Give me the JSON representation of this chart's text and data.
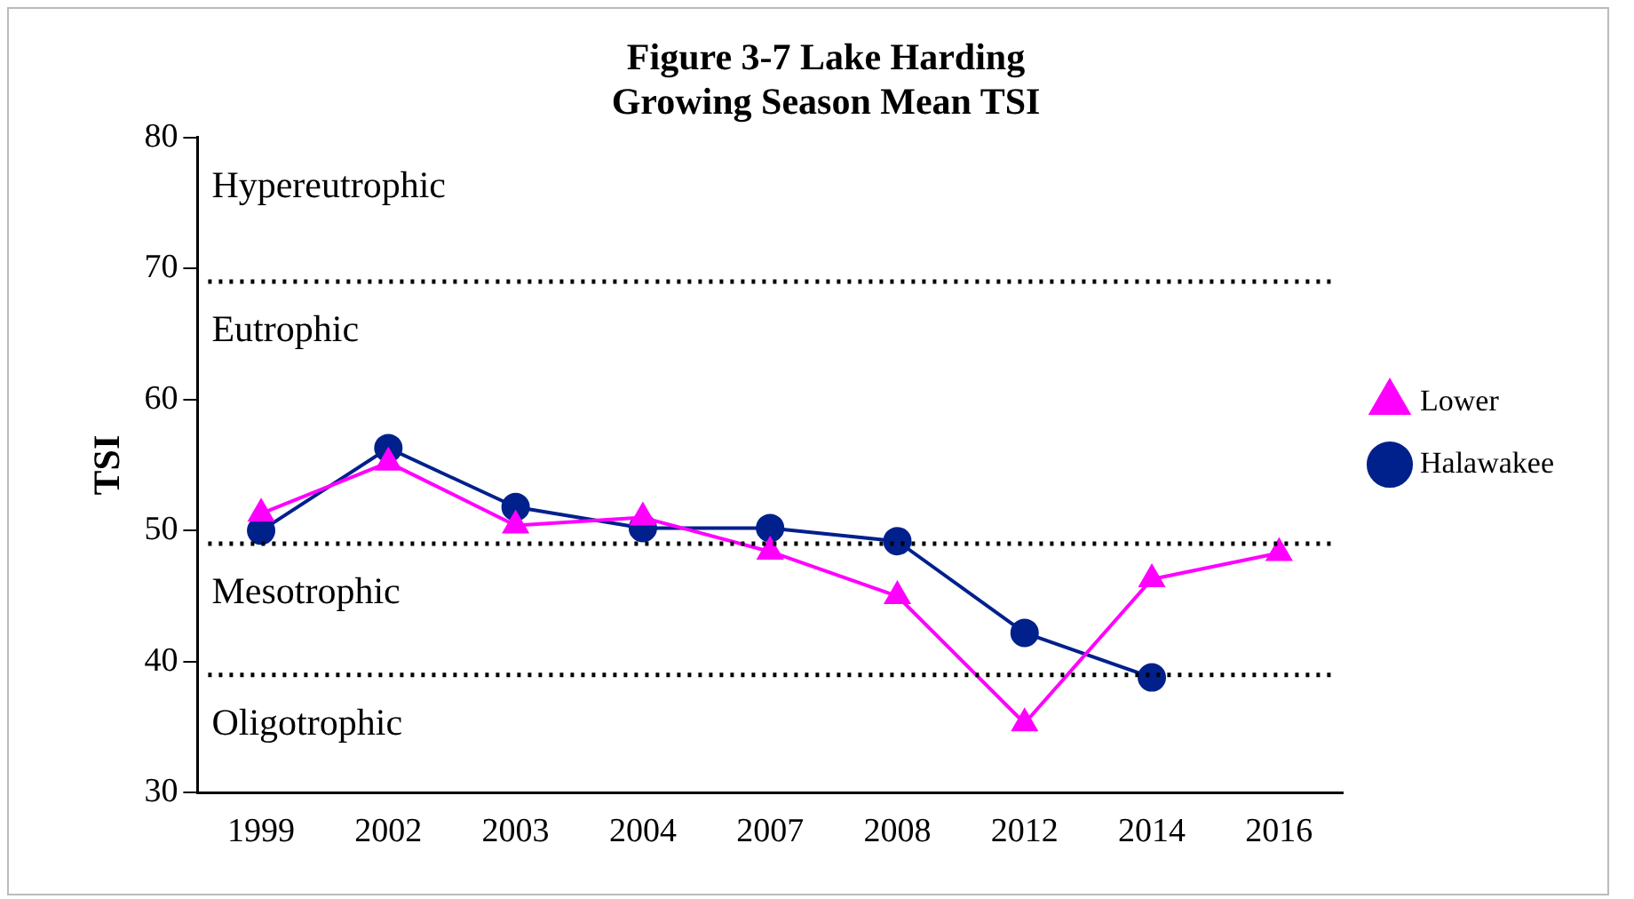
{
  "chart_data": {
    "type": "line",
    "title": "Figure 3-7 Lake Harding\nGrowing Season Mean TSI",
    "ylabel": "TSI",
    "categories": [
      "1999",
      "2002",
      "2003",
      "2004",
      "2007",
      "2008",
      "2012",
      "2014",
      "2016"
    ],
    "series": [
      {
        "name": "Halawakee",
        "color": "#00208c",
        "marker": "circle",
        "values": [
          50,
          56.3,
          51.8,
          50.2,
          50.2,
          49.2,
          42.2,
          38.8,
          null
        ]
      },
      {
        "name": "Lower",
        "color": "#ff00ff",
        "marker": "triangle",
        "values": [
          51.3,
          55.2,
          50.4,
          51,
          48.4,
          45,
          35.3,
          46.3,
          48.3
        ]
      }
    ],
    "ylim": [
      30,
      80
    ],
    "yticks": [
      30,
      40,
      50,
      60,
      70,
      80
    ],
    "grid": false,
    "legend": "right",
    "line_style": "solid",
    "ref_lines": [
      {
        "axis": "y",
        "value": 69,
        "color": "#000000",
        "line_style": "dotted"
      },
      {
        "axis": "y",
        "value": 49,
        "color": "#000000",
        "line_style": "dotted"
      },
      {
        "axis": "y",
        "value": 39,
        "color": "#000000",
        "line_style": "dotted"
      }
    ],
    "annotations": [
      "Hypereutrophic",
      "Eutrophic",
      "Mesotrophic",
      "Oligotrophic"
    ]
  }
}
